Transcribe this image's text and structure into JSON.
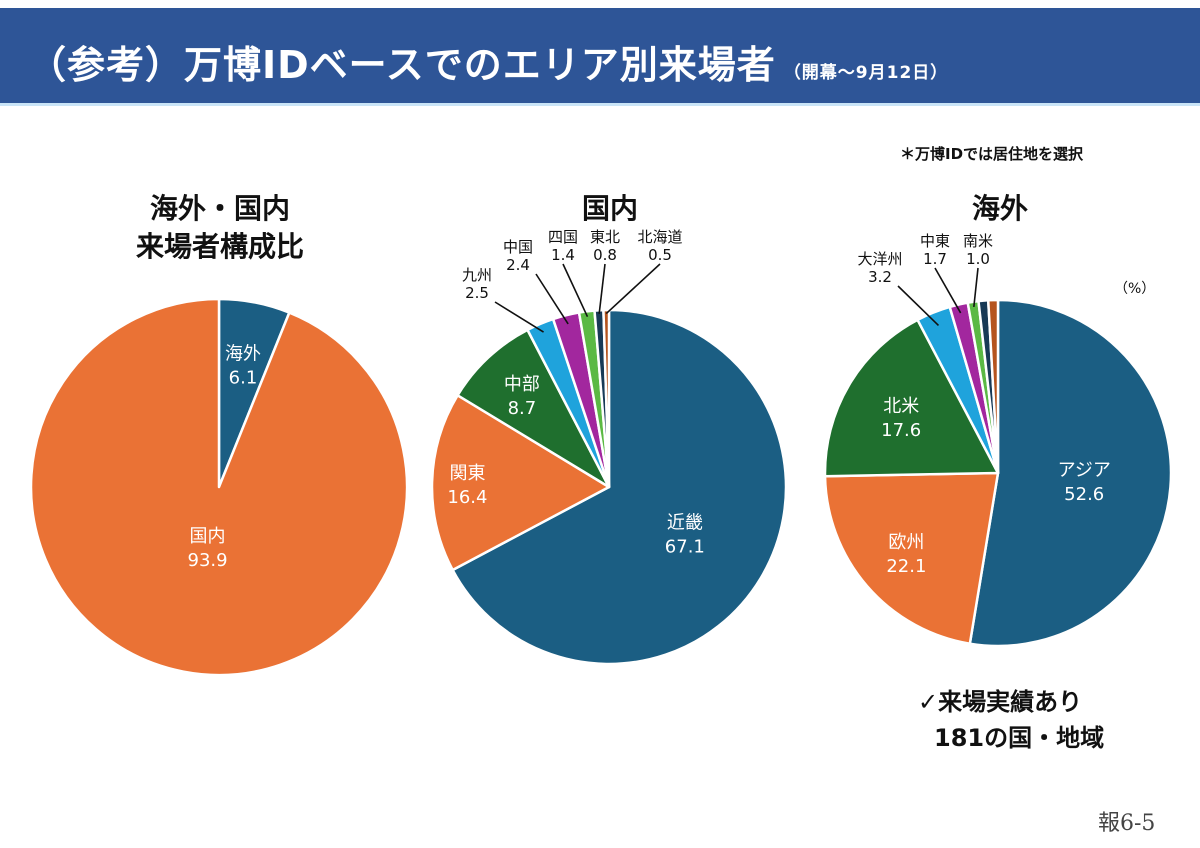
{
  "header": {
    "title": "（参考）万博IDベースでのエリア別来場者",
    "subtitle": "（開幕〜9月12日）",
    "background_color": "#2e5597"
  },
  "note": "＊万博IDでは居住地を選択",
  "unit_label": "（%）",
  "footnote": {
    "line1": "✓来場実績あり",
    "line2": "181の国・地域"
  },
  "page_number": "報6-5",
  "chart_data": [
    {
      "type": "pie",
      "title_lines": [
        "海外・国内",
        "来場者構成比"
      ],
      "unit": "%",
      "start": "12 o'clock, clockwise",
      "slices": [
        {
          "label": "海外",
          "value": 6.1,
          "color": "#1b5e83",
          "label_position": "inside"
        },
        {
          "label": "国内",
          "value": 93.9,
          "color": "#ea7235",
          "label_position": "inside"
        }
      ]
    },
    {
      "type": "pie",
      "title_lines": [
        "国内"
      ],
      "unit": "%",
      "start": "12 o'clock, clockwise",
      "slices": [
        {
          "label": "近畿",
          "value": 67.1,
          "color": "#1b5e83",
          "label_position": "inside"
        },
        {
          "label": "関東",
          "value": 16.4,
          "color": "#ea7235",
          "label_position": "inside"
        },
        {
          "label": "中部",
          "value": 8.7,
          "color": "#1f6f2e",
          "label_position": "inside"
        },
        {
          "label": "九州",
          "value": 2.5,
          "color": "#1fa3dc",
          "label_position": "outside"
        },
        {
          "label": "中国",
          "value": 2.4,
          "color": "#a2279e",
          "label_position": "outside"
        },
        {
          "label": "四国",
          "value": 1.4,
          "color": "#5bb944",
          "label_position": "outside"
        },
        {
          "label": "東北",
          "value": 0.8,
          "color": "#183a56",
          "label_position": "outside"
        },
        {
          "label": "北海道",
          "value": 0.5,
          "color": "#b5541e",
          "label_position": "outside"
        }
      ]
    },
    {
      "type": "pie",
      "title_lines": [
        "海外"
      ],
      "unit": "%",
      "start": "12 o'clock, clockwise",
      "slices": [
        {
          "label": "アジア",
          "value": 52.6,
          "color": "#1b5e83",
          "label_position": "inside"
        },
        {
          "label": "欧州",
          "value": 22.1,
          "color": "#ea7235",
          "label_position": "inside"
        },
        {
          "label": "北米",
          "value": 17.6,
          "color": "#1f6f2e",
          "label_position": "inside"
        },
        {
          "label": "大洋州",
          "value": 3.2,
          "color": "#1fa3dc",
          "label_position": "outside"
        },
        {
          "label": "中東",
          "value": 1.7,
          "color": "#a2279e",
          "label_position": "outside"
        },
        {
          "label": "南米",
          "value": 1.0,
          "color": "#5bb944",
          "label_position": "outside"
        },
        {
          "label": "",
          "value": 0.9,
          "color": "#183a56",
          "label_position": "none"
        },
        {
          "label": "",
          "value": 0.9,
          "color": "#b5541e",
          "label_position": "none"
        }
      ]
    }
  ]
}
